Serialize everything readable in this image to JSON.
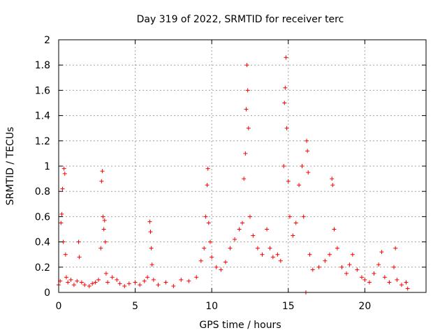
{
  "chart_data": {
    "type": "scatter",
    "title": "Day 319 of 2022, SRMTID for receiver terc",
    "xlabel": "GPS time / hours",
    "ylabel": "SRMTID / TECUs",
    "xlim": [
      0,
      24
    ],
    "ylim": [
      0,
      2
    ],
    "xticks": [
      0,
      5,
      10,
      15,
      20
    ],
    "xtick_labels": [
      "0",
      "5",
      "10",
      "15",
      "20"
    ],
    "yticks": [
      0,
      0.2,
      0.4,
      0.6,
      0.8,
      1,
      1.2,
      1.4,
      1.6,
      1.8,
      2
    ],
    "ytick_labels": [
      "0",
      "0.2",
      "0.4",
      "0.6",
      "0.8",
      "1",
      "1.2",
      "1.4",
      "1.6",
      "1.8",
      "2"
    ],
    "grid": true,
    "marker": "plus",
    "series": [
      {
        "name": "SRMTID",
        "color": "#ff0000",
        "points": [
          [
            0.0,
            0.06
          ],
          [
            0.1,
            0.09
          ],
          [
            0.15,
            0.55
          ],
          [
            0.2,
            0.62
          ],
          [
            0.25,
            0.82
          ],
          [
            0.3,
            0.4
          ],
          [
            0.35,
            0.98
          ],
          [
            0.4,
            0.94
          ],
          [
            0.45,
            0.3
          ],
          [
            0.5,
            0.12
          ],
          [
            0.6,
            0.08
          ],
          [
            0.8,
            0.1
          ],
          [
            1.0,
            0.06
          ],
          [
            1.2,
            0.09
          ],
          [
            1.3,
            0.4
          ],
          [
            1.35,
            0.28
          ],
          [
            1.5,
            0.08
          ],
          [
            1.7,
            0.06
          ],
          [
            2.0,
            0.05
          ],
          [
            2.2,
            0.07
          ],
          [
            2.4,
            0.08
          ],
          [
            2.6,
            0.1
          ],
          [
            2.75,
            0.35
          ],
          [
            2.8,
            0.88
          ],
          [
            2.85,
            0.96
          ],
          [
            2.9,
            0.6
          ],
          [
            2.95,
            0.5
          ],
          [
            3.0,
            0.57
          ],
          [
            3.05,
            0.4
          ],
          [
            3.1,
            0.15
          ],
          [
            3.2,
            0.08
          ],
          [
            3.5,
            0.12
          ],
          [
            3.8,
            0.1
          ],
          [
            4.0,
            0.07
          ],
          [
            4.3,
            0.05
          ],
          [
            4.6,
            0.07
          ],
          [
            5.0,
            0.08
          ],
          [
            5.3,
            0.06
          ],
          [
            5.6,
            0.09
          ],
          [
            5.8,
            0.12
          ],
          [
            5.95,
            0.56
          ],
          [
            6.0,
            0.48
          ],
          [
            6.05,
            0.35
          ],
          [
            6.1,
            0.22
          ],
          [
            6.2,
            0.1
          ],
          [
            6.5,
            0.06
          ],
          [
            7.0,
            0.08
          ],
          [
            7.5,
            0.05
          ],
          [
            8.0,
            0.1
          ],
          [
            8.5,
            0.09
          ],
          [
            9.0,
            0.12
          ],
          [
            9.3,
            0.25
          ],
          [
            9.5,
            0.35
          ],
          [
            9.6,
            0.6
          ],
          [
            9.7,
            0.85
          ],
          [
            9.75,
            0.98
          ],
          [
            9.8,
            0.55
          ],
          [
            9.9,
            0.4
          ],
          [
            10.0,
            0.28
          ],
          [
            10.3,
            0.2
          ],
          [
            10.6,
            0.18
          ],
          [
            10.9,
            0.24
          ],
          [
            11.2,
            0.35
          ],
          [
            11.5,
            0.42
          ],
          [
            11.8,
            0.5
          ],
          [
            12.0,
            0.55
          ],
          [
            12.1,
            0.9
          ],
          [
            12.2,
            1.1
          ],
          [
            12.25,
            1.45
          ],
          [
            12.3,
            1.8
          ],
          [
            12.35,
            1.6
          ],
          [
            12.4,
            1.3
          ],
          [
            12.5,
            0.6
          ],
          [
            12.7,
            0.45
          ],
          [
            13.0,
            0.35
          ],
          [
            13.3,
            0.3
          ],
          [
            13.6,
            0.5
          ],
          [
            13.8,
            0.35
          ],
          [
            14.0,
            0.28
          ],
          [
            14.3,
            0.3
          ],
          [
            14.5,
            0.25
          ],
          [
            14.7,
            1.0
          ],
          [
            14.75,
            1.5
          ],
          [
            14.8,
            1.62
          ],
          [
            14.85,
            1.86
          ],
          [
            14.9,
            1.3
          ],
          [
            15.0,
            0.88
          ],
          [
            15.1,
            0.6
          ],
          [
            15.3,
            0.45
          ],
          [
            15.5,
            0.55
          ],
          [
            15.7,
            0.85
          ],
          [
            15.9,
            1.0
          ],
          [
            16.0,
            0.6
          ],
          [
            16.15,
            0.0
          ],
          [
            16.2,
            1.2
          ],
          [
            16.25,
            1.12
          ],
          [
            16.3,
            0.95
          ],
          [
            16.4,
            0.3
          ],
          [
            16.6,
            0.18
          ],
          [
            17.0,
            0.2
          ],
          [
            17.4,
            0.25
          ],
          [
            17.7,
            0.3
          ],
          [
            17.85,
            0.9
          ],
          [
            17.9,
            0.85
          ],
          [
            18.0,
            0.5
          ],
          [
            18.2,
            0.35
          ],
          [
            18.5,
            0.2
          ],
          [
            18.8,
            0.15
          ],
          [
            19.0,
            0.22
          ],
          [
            19.2,
            0.3
          ],
          [
            19.5,
            0.18
          ],
          [
            19.8,
            0.12
          ],
          [
            20.0,
            0.1
          ],
          [
            20.3,
            0.08
          ],
          [
            20.6,
            0.15
          ],
          [
            20.9,
            0.22
          ],
          [
            21.1,
            0.32
          ],
          [
            21.3,
            0.12
          ],
          [
            21.6,
            0.08
          ],
          [
            21.9,
            0.2
          ],
          [
            22.0,
            0.35
          ],
          [
            22.1,
            0.1
          ],
          [
            22.4,
            0.06
          ],
          [
            22.7,
            0.08
          ],
          [
            22.8,
            0.03
          ]
        ]
      }
    ]
  }
}
